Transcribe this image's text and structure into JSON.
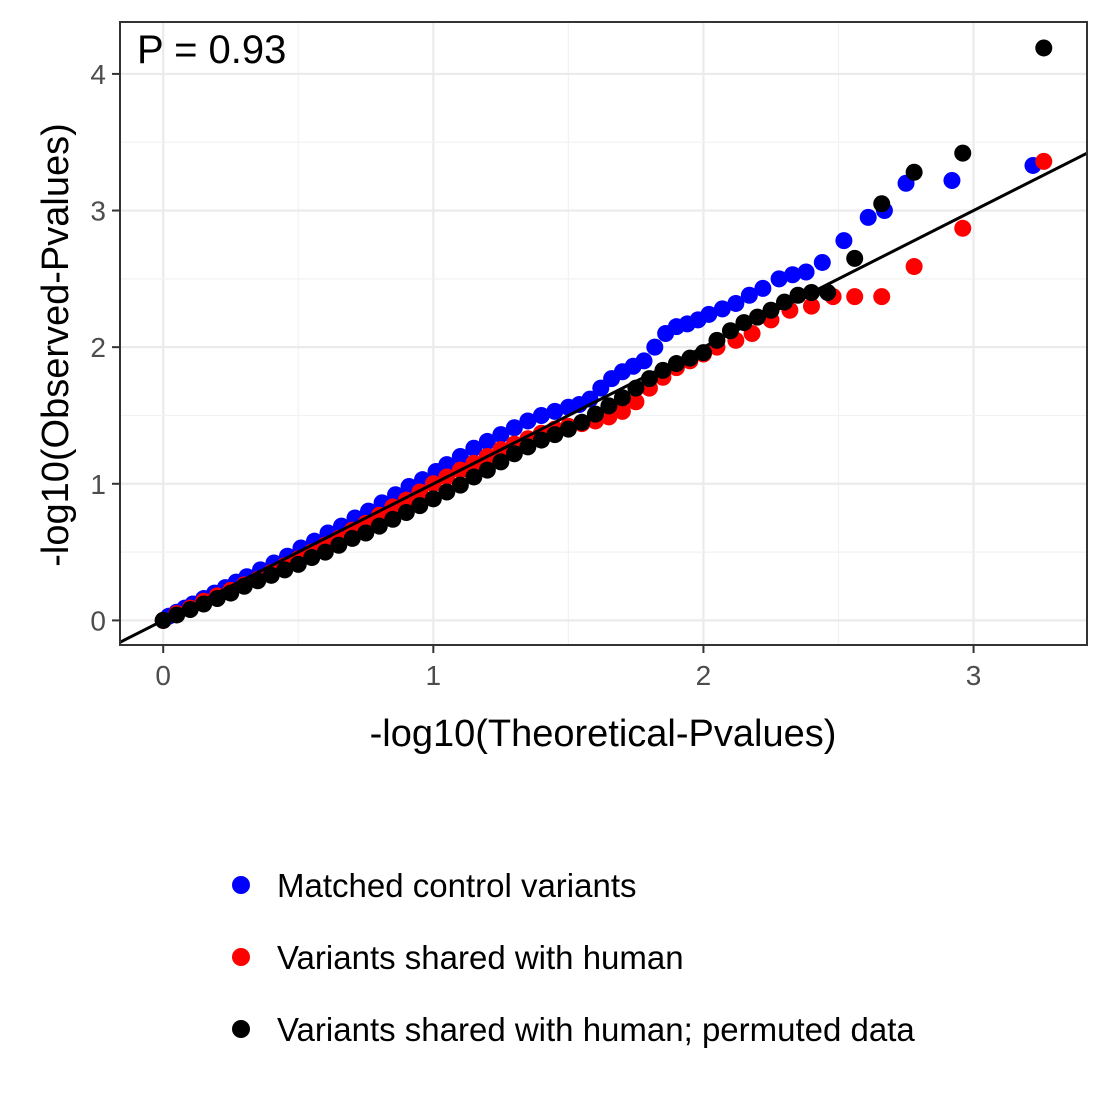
{
  "chart_data": {
    "type": "scatter",
    "xlabel": "-log10(Theoretical-Pvalues)",
    "ylabel": "-log10(Observed-Pvalues)",
    "xlim": [
      -0.16,
      3.42
    ],
    "ylim": [
      -0.18,
      4.38
    ],
    "xticks": [
      "0",
      "1",
      "2",
      "3"
    ],
    "yticks": [
      "0",
      "1",
      "2",
      "3",
      "4"
    ],
    "grid": true,
    "legend_position": "bottom",
    "annotation": "P = 0.93",
    "reference_line": {
      "slope": 1,
      "intercept": 0,
      "color": "#000000"
    },
    "series": [
      {
        "name": "Matched control variants",
        "color": "#0000ff",
        "points": [
          [
            0.0,
            0.0
          ],
          [
            0.02,
            0.03
          ],
          [
            0.05,
            0.06
          ],
          [
            0.08,
            0.09
          ],
          [
            0.11,
            0.12
          ],
          [
            0.15,
            0.16
          ],
          [
            0.19,
            0.2
          ],
          [
            0.23,
            0.24
          ],
          [
            0.27,
            0.28
          ],
          [
            0.31,
            0.32
          ],
          [
            0.36,
            0.37
          ],
          [
            0.41,
            0.42
          ],
          [
            0.46,
            0.47
          ],
          [
            0.51,
            0.53
          ],
          [
            0.56,
            0.58
          ],
          [
            0.61,
            0.64
          ],
          [
            0.66,
            0.69
          ],
          [
            0.71,
            0.75
          ],
          [
            0.76,
            0.8
          ],
          [
            0.81,
            0.86
          ],
          [
            0.86,
            0.92
          ],
          [
            0.91,
            0.98
          ],
          [
            0.96,
            1.03
          ],
          [
            1.01,
            1.09
          ],
          [
            1.05,
            1.14
          ],
          [
            1.1,
            1.2
          ],
          [
            1.15,
            1.26
          ],
          [
            1.2,
            1.31
          ],
          [
            1.25,
            1.36
          ],
          [
            1.3,
            1.41
          ],
          [
            1.35,
            1.46
          ],
          [
            1.4,
            1.5
          ],
          [
            1.45,
            1.53
          ],
          [
            1.5,
            1.56
          ],
          [
            1.54,
            1.58
          ],
          [
            1.58,
            1.62
          ],
          [
            1.62,
            1.7
          ],
          [
            1.66,
            1.77
          ],
          [
            1.7,
            1.82
          ],
          [
            1.74,
            1.86
          ],
          [
            1.78,
            1.9
          ],
          [
            1.82,
            2.0
          ],
          [
            1.86,
            2.1
          ],
          [
            1.9,
            2.15
          ],
          [
            1.94,
            2.17
          ],
          [
            1.98,
            2.2
          ],
          [
            2.02,
            2.24
          ],
          [
            2.07,
            2.28
          ],
          [
            2.12,
            2.32
          ],
          [
            2.17,
            2.38
          ],
          [
            2.22,
            2.43
          ],
          [
            2.28,
            2.5
          ],
          [
            2.33,
            2.53
          ],
          [
            2.38,
            2.55
          ],
          [
            2.44,
            2.62
          ],
          [
            2.52,
            2.78
          ],
          [
            2.61,
            2.95
          ],
          [
            2.67,
            3.0
          ],
          [
            2.75,
            3.2
          ],
          [
            2.92,
            3.22
          ],
          [
            3.22,
            3.33
          ]
        ]
      },
      {
        "name": "Variants shared with human",
        "color": "#ff0000",
        "points": [
          [
            0.0,
            0.0
          ],
          [
            0.05,
            0.05
          ],
          [
            0.1,
            0.09
          ],
          [
            0.15,
            0.14
          ],
          [
            0.2,
            0.18
          ],
          [
            0.25,
            0.22
          ],
          [
            0.3,
            0.26
          ],
          [
            0.35,
            0.3
          ],
          [
            0.4,
            0.35
          ],
          [
            0.45,
            0.4
          ],
          [
            0.5,
            0.45
          ],
          [
            0.55,
            0.5
          ],
          [
            0.6,
            0.55
          ],
          [
            0.65,
            0.6
          ],
          [
            0.7,
            0.66
          ],
          [
            0.75,
            0.71
          ],
          [
            0.8,
            0.77
          ],
          [
            0.85,
            0.83
          ],
          [
            0.9,
            0.88
          ],
          [
            0.95,
            0.94
          ],
          [
            1.0,
            1.0
          ],
          [
            1.05,
            1.05
          ],
          [
            1.1,
            1.1
          ],
          [
            1.15,
            1.15
          ],
          [
            1.2,
            1.2
          ],
          [
            1.25,
            1.25
          ],
          [
            1.3,
            1.29
          ],
          [
            1.35,
            1.33
          ],
          [
            1.4,
            1.37
          ],
          [
            1.45,
            1.4
          ],
          [
            1.5,
            1.42
          ],
          [
            1.55,
            1.44
          ],
          [
            1.6,
            1.46
          ],
          [
            1.65,
            1.49
          ],
          [
            1.7,
            1.53
          ],
          [
            1.75,
            1.6
          ],
          [
            1.8,
            1.7
          ],
          [
            1.85,
            1.78
          ],
          [
            1.9,
            1.85
          ],
          [
            1.95,
            1.9
          ],
          [
            2.0,
            1.95
          ],
          [
            2.05,
            2.0
          ],
          [
            2.12,
            2.05
          ],
          [
            2.18,
            2.1
          ],
          [
            2.25,
            2.2
          ],
          [
            2.32,
            2.27
          ],
          [
            2.4,
            2.3
          ],
          [
            2.48,
            2.37
          ],
          [
            2.56,
            2.37
          ],
          [
            2.66,
            2.37
          ],
          [
            2.78,
            2.59
          ],
          [
            2.96,
            2.87
          ],
          [
            3.26,
            3.36
          ]
        ]
      },
      {
        "name": "Variants shared with human; permuted data",
        "color": "#000000",
        "points": [
          [
            0.0,
            0.0
          ],
          [
            0.05,
            0.04
          ],
          [
            0.1,
            0.08
          ],
          [
            0.15,
            0.12
          ],
          [
            0.2,
            0.16
          ],
          [
            0.25,
            0.2
          ],
          [
            0.3,
            0.25
          ],
          [
            0.35,
            0.29
          ],
          [
            0.4,
            0.33
          ],
          [
            0.45,
            0.37
          ],
          [
            0.5,
            0.41
          ],
          [
            0.55,
            0.46
          ],
          [
            0.6,
            0.5
          ],
          [
            0.65,
            0.55
          ],
          [
            0.7,
            0.6
          ],
          [
            0.75,
            0.64
          ],
          [
            0.8,
            0.69
          ],
          [
            0.85,
            0.74
          ],
          [
            0.9,
            0.79
          ],
          [
            0.95,
            0.84
          ],
          [
            1.0,
            0.89
          ],
          [
            1.05,
            0.94
          ],
          [
            1.1,
            0.99
          ],
          [
            1.15,
            1.05
          ],
          [
            1.2,
            1.1
          ],
          [
            1.25,
            1.16
          ],
          [
            1.3,
            1.22
          ],
          [
            1.35,
            1.27
          ],
          [
            1.4,
            1.32
          ],
          [
            1.45,
            1.36
          ],
          [
            1.5,
            1.4
          ],
          [
            1.55,
            1.45
          ],
          [
            1.6,
            1.51
          ],
          [
            1.65,
            1.57
          ],
          [
            1.7,
            1.63
          ],
          [
            1.75,
            1.7
          ],
          [
            1.8,
            1.77
          ],
          [
            1.85,
            1.83
          ],
          [
            1.9,
            1.88
          ],
          [
            1.95,
            1.92
          ],
          [
            2.0,
            1.96
          ],
          [
            2.05,
            2.05
          ],
          [
            2.1,
            2.12
          ],
          [
            2.15,
            2.18
          ],
          [
            2.2,
            2.22
          ],
          [
            2.25,
            2.27
          ],
          [
            2.3,
            2.33
          ],
          [
            2.35,
            2.38
          ],
          [
            2.4,
            2.4
          ],
          [
            2.46,
            2.4
          ],
          [
            2.56,
            2.65
          ],
          [
            2.66,
            3.05
          ],
          [
            2.78,
            3.28
          ],
          [
            2.96,
            3.42
          ],
          [
            3.26,
            4.19
          ]
        ]
      }
    ]
  }
}
